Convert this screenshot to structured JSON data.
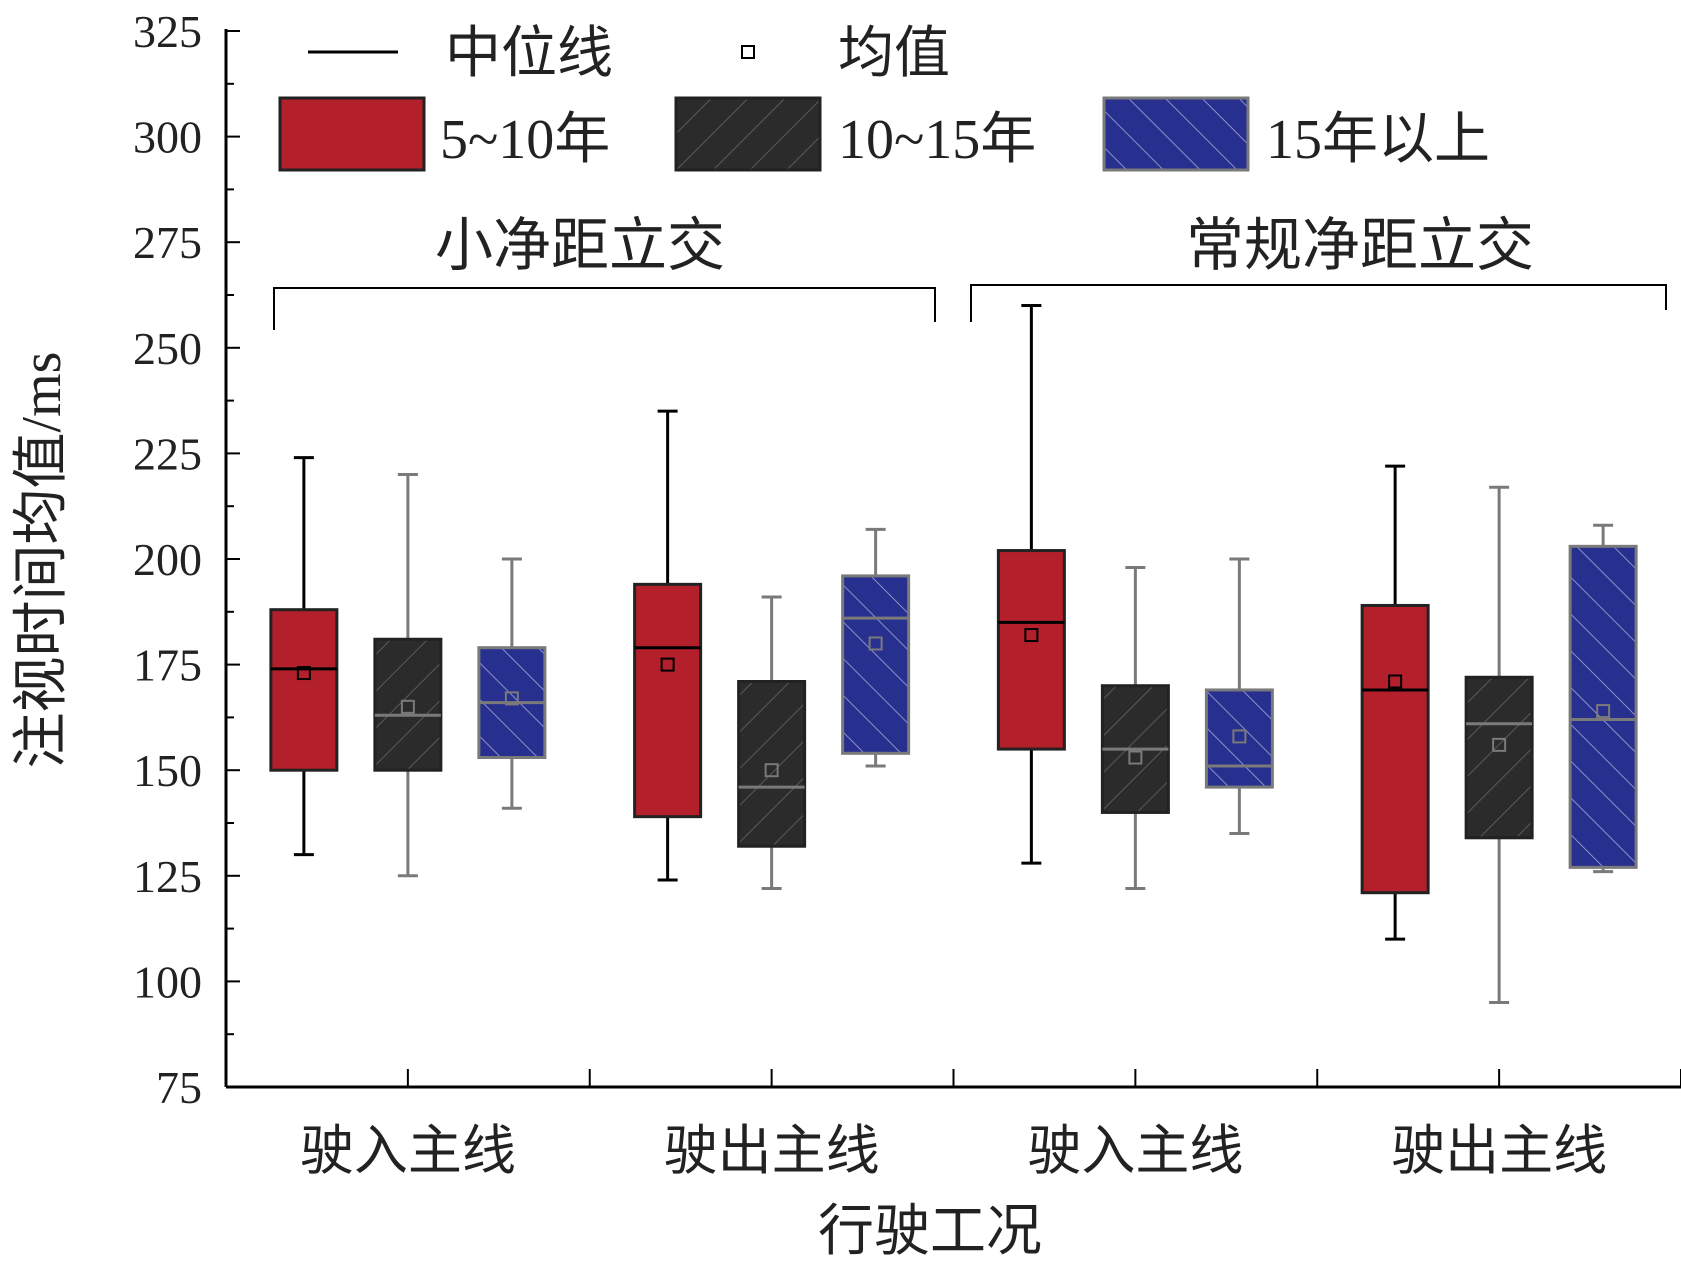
{
  "colors": {
    "red": "#b31f2b",
    "black": "#2b2b2b",
    "blue": "#28308f",
    "axis": "#000000",
    "light_line": "#7a7a7a"
  },
  "chart_data": {
    "type": "box",
    "ylabel": "注视时间均值/ms",
    "xlabel": "行驶工况",
    "ylim": [
      75,
      325
    ],
    "yticks": [
      75,
      100,
      125,
      150,
      175,
      200,
      225,
      250,
      275,
      300,
      325
    ],
    "categories": [
      "驶入主线",
      "驶出主线",
      "驶入主线",
      "驶出主线"
    ],
    "groups": [
      {
        "label": "小净距立交",
        "categories": [
          0,
          1
        ]
      },
      {
        "label": "常规净距立交",
        "categories": [
          2,
          3
        ]
      }
    ],
    "legend": {
      "median_label": "中位线",
      "mean_label": "均值"
    },
    "series": [
      {
        "name": "5~10年",
        "color": "#b31f2b",
        "pattern": "none",
        "boxes": [
          {
            "min": 130,
            "q1": 150,
            "median": 174,
            "q3": 188,
            "max": 224,
            "mean": 173
          },
          {
            "min": 124,
            "q1": 139,
            "median": 179,
            "q3": 194,
            "max": 235,
            "mean": 175
          },
          {
            "min": 128,
            "q1": 155,
            "median": 185,
            "q3": 202,
            "max": 260,
            "mean": 182
          },
          {
            "min": 110,
            "q1": 121,
            "median": 169,
            "q3": 189,
            "max": 222,
            "mean": 171
          }
        ]
      },
      {
        "name": "10~15年",
        "color": "#2b2b2b",
        "pattern": "hatch-forward",
        "boxes": [
          {
            "min": 125,
            "q1": 150,
            "median": 163,
            "q3": 181,
            "max": 220,
            "mean": 165
          },
          {
            "min": 122,
            "q1": 132,
            "median": 146,
            "q3": 171,
            "max": 191,
            "mean": 150
          },
          {
            "min": 122,
            "q1": 140,
            "median": 155,
            "q3": 170,
            "max": 198,
            "mean": 153
          },
          {
            "min": 95,
            "q1": 134,
            "median": 161,
            "q3": 172,
            "max": 217,
            "mean": 156
          }
        ]
      },
      {
        "name": "15年以上",
        "color": "#28308f",
        "pattern": "hatch-backward",
        "boxes": [
          {
            "min": 141,
            "q1": 153,
            "median": 166,
            "q3": 179,
            "max": 200,
            "mean": 167
          },
          {
            "min": 151,
            "q1": 154,
            "median": 186,
            "q3": 196,
            "max": 207,
            "mean": 180
          },
          {
            "min": 135,
            "q1": 146,
            "median": 151,
            "q3": 169,
            "max": 200,
            "mean": 158
          },
          {
            "min": 126,
            "q1": 127,
            "median": 162,
            "q3": 203,
            "max": 208,
            "mean": 164
          }
        ]
      }
    ]
  }
}
